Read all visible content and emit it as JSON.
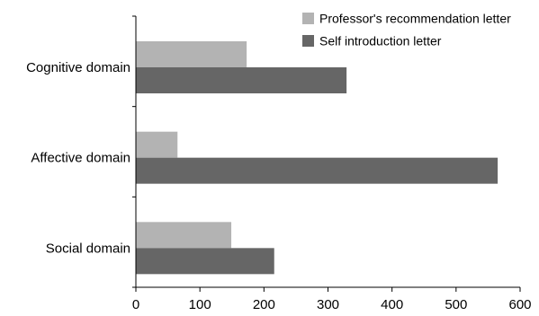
{
  "chart_data": {
    "type": "bar",
    "orientation": "horizontal",
    "categories": [
      "Cognitive domain",
      "Affective domain",
      "Social domain"
    ],
    "series": [
      {
        "name": "Professor's recommendation letter",
        "values": [
          173,
          65,
          149
        ],
        "color": "#b3b3b3"
      },
      {
        "name": "Self introduction letter",
        "values": [
          329,
          565,
          216
        ],
        "color": "#666666"
      }
    ],
    "xlim": [
      0,
      600
    ],
    "xticks": [
      0,
      100,
      200,
      300,
      400,
      500,
      600
    ],
    "title": "",
    "xlabel": "",
    "ylabel": "",
    "grid": false,
    "legend_position": "top-right"
  }
}
